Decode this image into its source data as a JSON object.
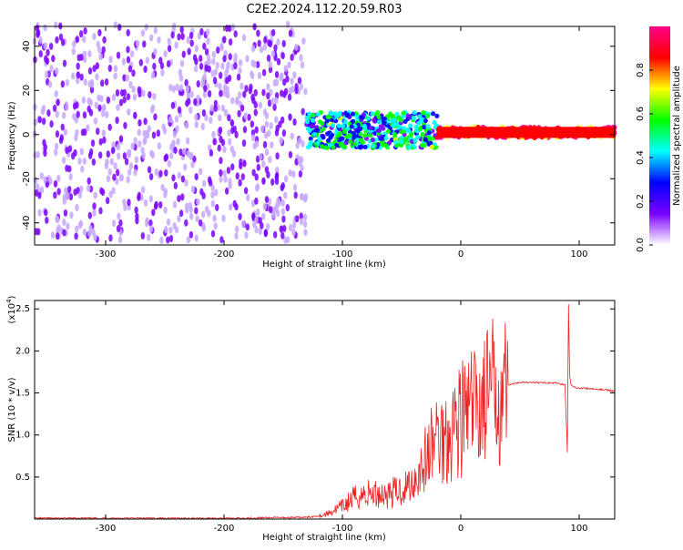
{
  "title": "C2E2.2024.112.20.59.R03",
  "chart_data": [
    {
      "type": "heatmap",
      "xlabel": "Height of straight line (km)",
      "ylabel": "Frequency (Hz)",
      "xlim": [
        -360,
        130
      ],
      "ylim": [
        -50,
        49
      ],
      "xticks": [
        -300,
        -200,
        -100,
        0,
        100
      ],
      "yticks": [
        -40,
        -20,
        0,
        20,
        40
      ],
      "colorbar": {
        "label": "Normalized spectral amplitude",
        "range": [
          0,
          1
        ],
        "ticks": [
          "0.0",
          "0.2",
          "0.4",
          "0.6",
          "0.8"
        ],
        "tick_values": [
          0.0,
          0.2,
          0.4,
          0.6,
          0.8
        ],
        "colors": [
          "#ffffff",
          "#7a00ff",
          "#0000ff",
          "#00ffff",
          "#00ff00",
          "#ffff00",
          "#ff0000",
          "#ff0088"
        ]
      },
      "regions": [
        {
          "x_range": [
            -360,
            -130
          ],
          "freq_half_width": 49,
          "amplitude": 0.1,
          "description": "scattered noise"
        },
        {
          "x_range": [
            -130,
            -20
          ],
          "freq_half_width": 8,
          "amplitude": 0.4
        },
        {
          "x_range": [
            -20,
            130
          ],
          "freq_half_width": 2.5,
          "amplitude": 0.9
        }
      ],
      "grid": false
    },
    {
      "type": "line",
      "xlabel": "Height of straight line (km)",
      "ylabel": "SNR (10 * v/v)",
      "y_multiplier": "(x10",
      "y_multiplier_exp": "4",
      "y_multiplier_close": ")",
      "xlim": [
        -360,
        130
      ],
      "ylim": [
        0,
        2.6
      ],
      "xticks": [
        -300,
        -200,
        -100,
        0,
        100
      ],
      "yticks": [
        0.5,
        1.0,
        1.5,
        2.0,
        2.5
      ],
      "series_color": "#ee2222",
      "series": [
        {
          "x": [
            -360,
            -300,
            -200,
            -130,
            -115,
            -100,
            -90,
            -80,
            -70,
            -60,
            -50,
            -40,
            -30,
            -20,
            -15,
            -10,
            -5,
            0,
            10,
            20,
            30,
            40,
            50,
            60,
            70,
            80,
            88,
            90,
            91,
            92,
            93,
            95,
            100,
            110,
            120,
            130
          ],
          "y": [
            0.01,
            0.01,
            0.01,
            0.02,
            0.05,
            0.15,
            0.25,
            0.3,
            0.3,
            0.3,
            0.35,
            0.45,
            0.7,
            1.0,
            0.95,
            1.05,
            1.15,
            1.2,
            1.3,
            1.45,
            1.55,
            1.6,
            1.62,
            1.63,
            1.62,
            1.62,
            1.6,
            0.8,
            2.55,
            1.7,
            1.6,
            1.57,
            1.56,
            1.55,
            1.54,
            1.52
          ]
        }
      ],
      "grid": false
    }
  ]
}
